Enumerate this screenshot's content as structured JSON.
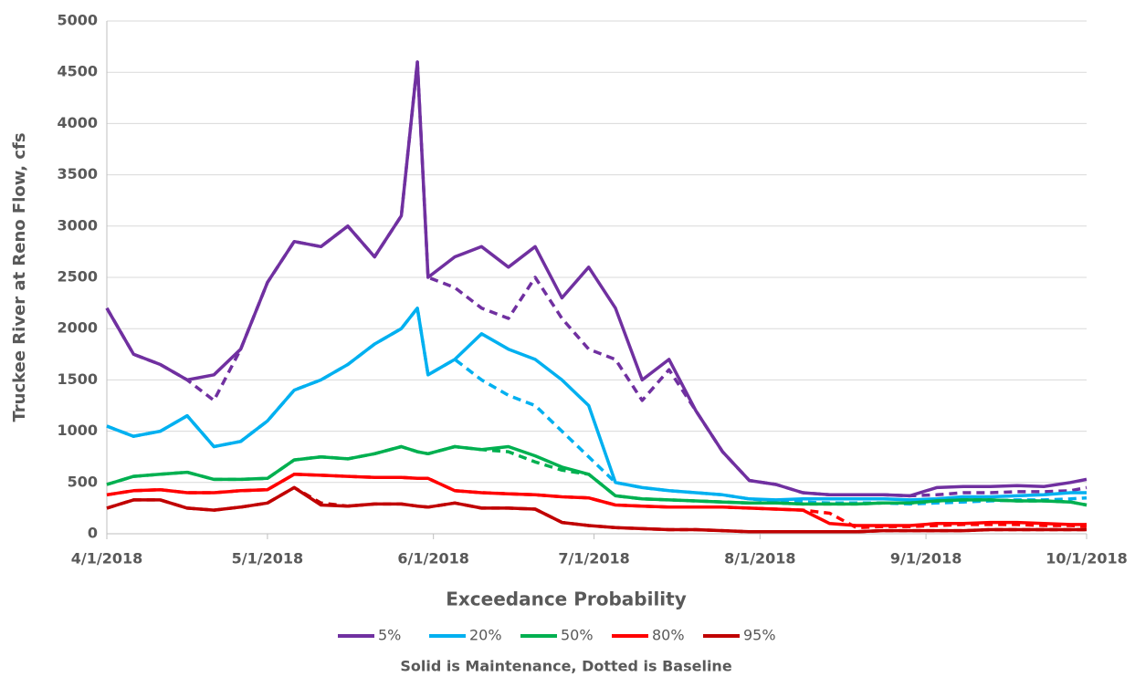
{
  "chart_data": {
    "type": "line",
    "y_label": "Truckee River at Reno Flow, cfs",
    "x_label": "Exceedance Probability",
    "note": "Solid is Maintenance, Dotted is Baseline",
    "x": [
      "2018-04-01",
      "2018-04-06",
      "2018-04-11",
      "2018-04-16",
      "2018-04-21",
      "2018-04-26",
      "2018-05-01",
      "2018-05-06",
      "2018-05-11",
      "2018-05-16",
      "2018-05-21",
      "2018-05-26",
      "2018-05-29",
      "2018-05-31",
      "2018-06-05",
      "2018-06-10",
      "2018-06-15",
      "2018-06-20",
      "2018-06-25",
      "2018-06-30",
      "2018-07-05",
      "2018-07-10",
      "2018-07-15",
      "2018-07-20",
      "2018-07-25",
      "2018-07-30",
      "2018-08-04",
      "2018-08-09",
      "2018-08-14",
      "2018-08-19",
      "2018-08-24",
      "2018-08-29",
      "2018-09-03",
      "2018-09-08",
      "2018-09-13",
      "2018-09-18",
      "2018-09-23",
      "2018-09-28",
      "2018-10-01"
    ],
    "xlim": [
      "2018-04-01",
      "2018-10-01"
    ],
    "xticks": [
      {
        "value": "2018-04-01",
        "label": "4/1/2018"
      },
      {
        "value": "2018-05-01",
        "label": "5/1/2018"
      },
      {
        "value": "2018-06-01",
        "label": "6/1/2018"
      },
      {
        "value": "2018-07-01",
        "label": "7/1/2018"
      },
      {
        "value": "2018-08-01",
        "label": "8/1/2018"
      },
      {
        "value": "2018-09-01",
        "label": "9/1/2018"
      },
      {
        "value": "2018-10-01",
        "label": "10/1/2018"
      }
    ],
    "ylim": [
      0,
      5000
    ],
    "yticks": [
      0,
      500,
      1000,
      1500,
      2000,
      2500,
      3000,
      3500,
      4000,
      4500,
      5000
    ],
    "grid": true,
    "legend": "bottom",
    "series": [
      {
        "name": "5%",
        "color": "#7030a0",
        "values": [
          2200,
          1750,
          1650,
          1500,
          1550,
          1800,
          2450,
          2850,
          2800,
          3000,
          2700,
          3100,
          4600,
          2500,
          2700,
          2800,
          2600,
          2800,
          2300,
          2600,
          2200,
          1500,
          1700,
          1200,
          800,
          520,
          480,
          400,
          380,
          380,
          380,
          370,
          450,
          460,
          460,
          470,
          460,
          500,
          530
        ],
        "baseline": [
          2200,
          1750,
          1650,
          1500,
          1300,
          1800,
          2450,
          2850,
          2800,
          3000,
          2700,
          3100,
          4600,
          2500,
          2400,
          2200,
          2100,
          2500,
          2100,
          1800,
          1700,
          1300,
          1600,
          1200,
          800,
          520,
          480,
          400,
          380,
          380,
          380,
          370,
          380,
          400,
          400,
          410,
          410,
          420,
          450
        ]
      },
      {
        "name": "20%",
        "color": "#00b0f0",
        "values": [
          1050,
          950,
          1000,
          1150,
          850,
          900,
          1100,
          1400,
          1500,
          1650,
          1850,
          2000,
          2200,
          1550,
          1700,
          1950,
          1800,
          1700,
          1500,
          1250,
          500,
          450,
          420,
          400,
          380,
          340,
          330,
          340,
          340,
          340,
          340,
          330,
          340,
          360,
          360,
          370,
          380,
          400,
          400
        ],
        "baseline": [
          1050,
          950,
          1000,
          1150,
          850,
          900,
          1100,
          1400,
          1500,
          1650,
          1850,
          2000,
          2200,
          1550,
          1700,
          1500,
          1350,
          1250,
          1000,
          750,
          500,
          450,
          420,
          400,
          380,
          340,
          320,
          310,
          300,
          300,
          300,
          290,
          300,
          310,
          320,
          330,
          330,
          340,
          350
        ]
      },
      {
        "name": "50%",
        "color": "#00b050",
        "values": [
          480,
          560,
          580,
          600,
          530,
          530,
          540,
          720,
          750,
          730,
          780,
          850,
          800,
          780,
          850,
          820,
          850,
          760,
          650,
          580,
          370,
          340,
          330,
          320,
          310,
          300,
          300,
          290,
          290,
          290,
          300,
          300,
          320,
          330,
          330,
          320,
          320,
          310,
          280
        ],
        "baseline": [
          480,
          560,
          580,
          600,
          530,
          530,
          540,
          720,
          750,
          730,
          780,
          850,
          800,
          780,
          850,
          820,
          800,
          700,
          620,
          580,
          370,
          340,
          330,
          320,
          310,
          300,
          300,
          290,
          290,
          290,
          300,
          300,
          320,
          330,
          330,
          320,
          320,
          310,
          280
        ]
      },
      {
        "name": "80%",
        "color": "#ff0000",
        "values": [
          380,
          420,
          430,
          400,
          400,
          420,
          430,
          580,
          570,
          560,
          550,
          550,
          540,
          540,
          420,
          400,
          390,
          380,
          360,
          350,
          280,
          270,
          260,
          260,
          260,
          250,
          240,
          230,
          100,
          80,
          80,
          80,
          100,
          100,
          110,
          110,
          100,
          90,
          90
        ],
        "baseline": [
          380,
          420,
          430,
          400,
          400,
          420,
          430,
          580,
          570,
          560,
          550,
          550,
          540,
          540,
          420,
          400,
          390,
          380,
          360,
          350,
          280,
          270,
          260,
          260,
          260,
          250,
          240,
          230,
          200,
          60,
          70,
          70,
          80,
          90,
          90,
          90,
          80,
          80,
          70
        ]
      },
      {
        "name": "95%",
        "color": "#c00000",
        "values": [
          250,
          330,
          330,
          250,
          230,
          260,
          300,
          450,
          280,
          270,
          290,
          290,
          270,
          260,
          300,
          250,
          250,
          240,
          110,
          80,
          60,
          50,
          40,
          40,
          30,
          20,
          20,
          20,
          20,
          20,
          30,
          30,
          30,
          30,
          40,
          40,
          40,
          40,
          40
        ],
        "baseline": [
          250,
          330,
          330,
          250,
          230,
          260,
          300,
          450,
          300,
          270,
          290,
          290,
          270,
          260,
          300,
          250,
          250,
          240,
          110,
          80,
          60,
          50,
          40,
          40,
          30,
          20,
          20,
          20,
          20,
          20,
          30,
          30,
          30,
          30,
          40,
          40,
          40,
          40,
          40
        ]
      }
    ]
  }
}
